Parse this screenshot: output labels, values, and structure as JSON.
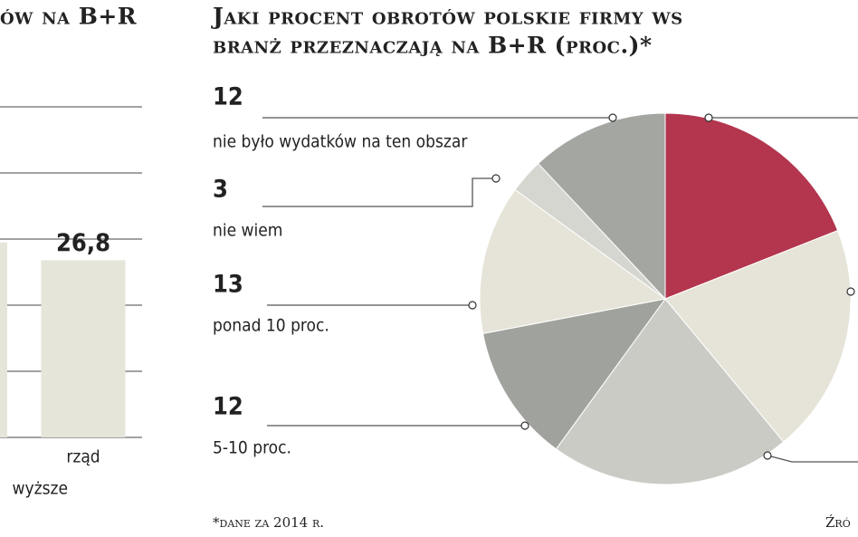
{
  "chart_data": [
    {
      "type": "bar",
      "title": "ów na B+R",
      "categories": [
        "wyższe",
        "rząd"
      ],
      "values": [
        29.5,
        26.8
      ],
      "value_labels": [
        null,
        "26,8"
      ],
      "color": "#e6e5da",
      "ylim": [
        0,
        50
      ],
      "yticks": [
        0,
        10,
        20,
        30,
        40,
        50
      ],
      "grid": true
    },
    {
      "type": "pie",
      "title": [
        "Jaki procent obrotów polskie firmy ws",
        "branż przeznaczają na B+R (proc.)*"
      ],
      "categories": [
        null,
        null,
        null,
        "5-10 proc.",
        "ponad 10 proc.",
        "nie wiem",
        "nie było wydatków na ten obszar"
      ],
      "values": [
        19,
        20,
        21,
        12,
        13,
        3,
        12
      ],
      "colors": [
        "#b3354e",
        "#e6e4d8",
        "#cbcbc6",
        "#a0a29d",
        "#e6e4d8",
        "#d6d6d1",
        "#a4a6a1"
      ],
      "footnote": "*dane za 2014 r.",
      "source": "Źró"
    }
  ]
}
